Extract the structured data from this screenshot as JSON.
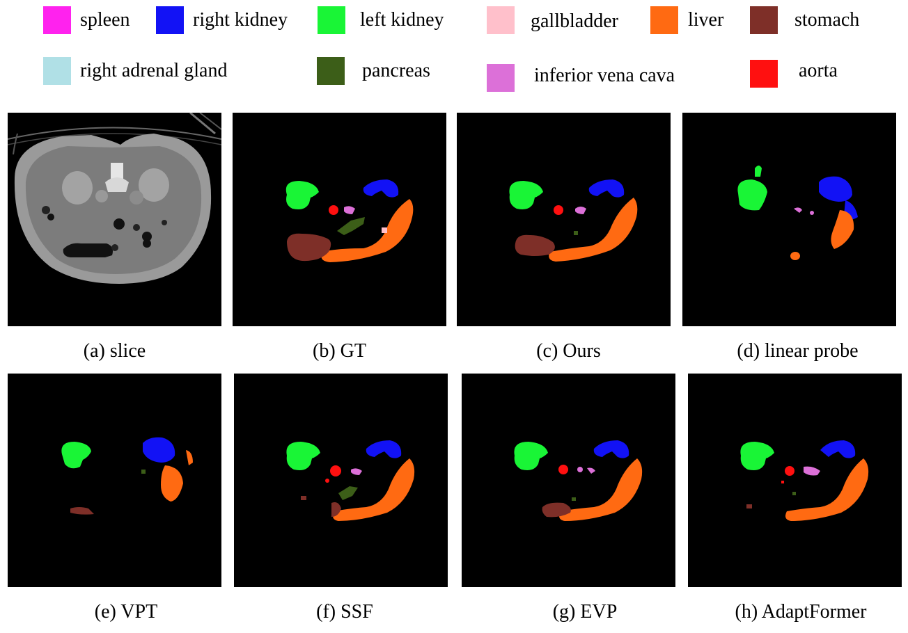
{
  "legend": [
    {
      "label": "spleen",
      "color": "#ff22ee"
    },
    {
      "label": "right kidney",
      "color": "#1212f5"
    },
    {
      "label": "left kidney",
      "color": "#19f536"
    },
    {
      "label": "gallbladder",
      "color": "#ffc0cb"
    },
    {
      "label": "liver",
      "color": "#ff6a12"
    },
    {
      "label": "stomach",
      "color": "#7e2f28"
    },
    {
      "label": "right adrenal gland",
      "color": "#b0e0e6"
    },
    {
      "label": "pancreas",
      "color": "#3c5e18"
    },
    {
      "label": "inferior vena cava",
      "color": "#dc70d8"
    },
    {
      "label": "aorta",
      "color": "#ff1010"
    }
  ],
  "panels": [
    {
      "caption": "(a) slice"
    },
    {
      "caption": "(b) GT"
    },
    {
      "caption": "(c) Ours"
    },
    {
      "caption": "(d) linear probe"
    },
    {
      "caption": "(e) VPT"
    },
    {
      "caption": "(f) SSF"
    },
    {
      "caption": "(g) EVP"
    },
    {
      "caption": "(h) AdaptFormer"
    }
  ]
}
